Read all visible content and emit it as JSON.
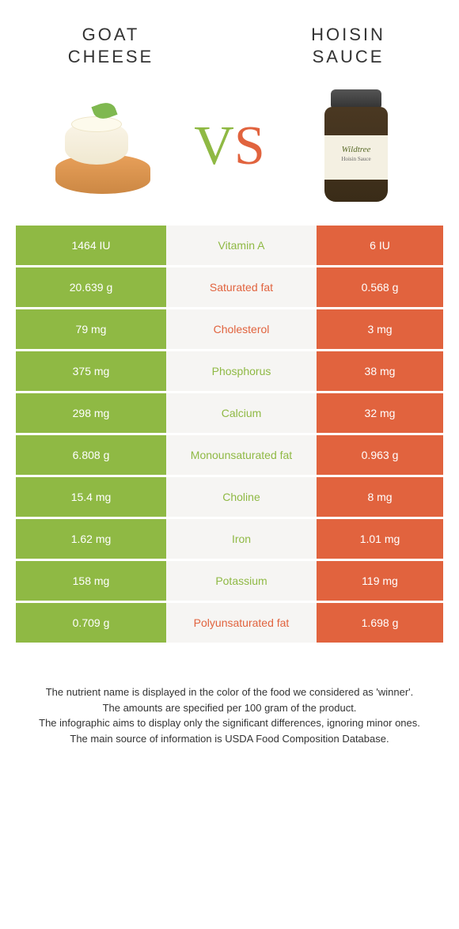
{
  "left": {
    "title": "GOAT\nCHEESE",
    "jar_label": ""
  },
  "right": {
    "title": "HOISIN\nSAUCE",
    "jar_brand": "Wildtree",
    "jar_sub": "Hoisin Sauce"
  },
  "vs": {
    "v": "V",
    "s": "S"
  },
  "colors": {
    "green": "#8fb944",
    "orange": "#e1633e",
    "mid_bg": "#f6f5f3",
    "row_gap": "#ffffff"
  },
  "rows": [
    {
      "left": "1464 IU",
      "label": "Vitamin A",
      "right": "6 IU",
      "winner": "left"
    },
    {
      "left": "20.639 g",
      "label": "Saturated fat",
      "right": "0.568 g",
      "winner": "right"
    },
    {
      "left": "79 mg",
      "label": "Cholesterol",
      "right": "3 mg",
      "winner": "right"
    },
    {
      "left": "375 mg",
      "label": "Phosphorus",
      "right": "38 mg",
      "winner": "left"
    },
    {
      "left": "298 mg",
      "label": "Calcium",
      "right": "32 mg",
      "winner": "left"
    },
    {
      "left": "6.808 g",
      "label": "Monounsaturated fat",
      "right": "0.963 g",
      "winner": "left"
    },
    {
      "left": "15.4 mg",
      "label": "Choline",
      "right": "8 mg",
      "winner": "left"
    },
    {
      "left": "1.62 mg",
      "label": "Iron",
      "right": "1.01 mg",
      "winner": "left"
    },
    {
      "left": "158 mg",
      "label": "Potassium",
      "right": "119 mg",
      "winner": "left"
    },
    {
      "left": "0.709 g",
      "label": "Polyunsaturated fat",
      "right": "1.698 g",
      "winner": "right"
    }
  ],
  "footer": [
    "The nutrient name is displayed in the color of the food we considered as 'winner'.",
    "The amounts are specified per 100 gram of the product.",
    "The infographic aims to display only the significant differences, ignoring minor ones.",
    "The main source of information is USDA Food Composition Database."
  ]
}
